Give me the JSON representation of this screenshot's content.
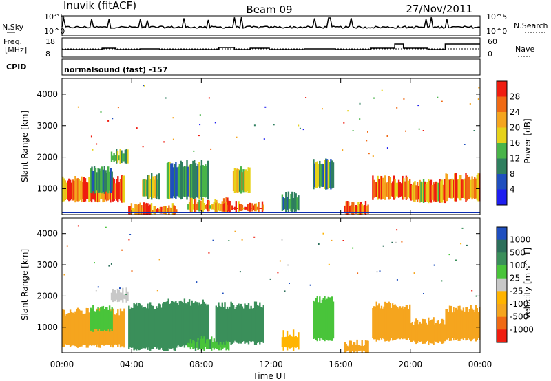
{
  "header": {
    "station": "Inuvik (fitACF)",
    "beam": "Beam 09",
    "date": "27/Nov/2011"
  },
  "strip": {
    "nsky_label": "N.Sky",
    "nsky_ticks": [
      "10^5",
      "10^0"
    ],
    "nsearch_label": "N.Search",
    "nsearch_ticks": [
      "10^5",
      "10^0"
    ],
    "freq_label_line1": "Freq.",
    "freq_label_line2": "[MHz]",
    "freq_ticks": [
      "18",
      "8"
    ],
    "nave_label": "Nave",
    "nave_ticks": [
      "60",
      "0"
    ],
    "cpid_label": "CPID",
    "cpid_value": "normalsound (fast) -157"
  },
  "x_ticks": [
    "00:00",
    "04:00",
    "08:00",
    "12:00",
    "16:00",
    "20:00",
    "00:00"
  ],
  "x_label": "Time UT",
  "colors": {
    "power": [
      "#1e1ef0",
      "#1f4fbf",
      "#2f7f5f",
      "#49b449",
      "#e6d21a",
      "#f5a51e",
      "#f06a14",
      "#ef1d10"
    ],
    "velocity": [
      "#ef1d10",
      "#f06a14",
      "#f5a51e",
      "#ffb400",
      "#c8c8c8",
      "#49c43a",
      "#3a8f5a",
      "#2c6f5a",
      "#1f4fbf"
    ]
  },
  "chart_data": [
    {
      "type": "heatmap",
      "panel": "power",
      "ylabel": "Slant Range [km]",
      "yticks": [
        "4000",
        "3000",
        "2000",
        "1000"
      ],
      "ylim": [
        180,
        4500
      ],
      "xlim": [
        "00:00",
        "24:00"
      ],
      "colorbar_label": "Power [dB]",
      "colorbar_ticks": [
        "28",
        "24",
        "20",
        "16",
        "12",
        "8",
        "4"
      ],
      "cbar_range": [
        0,
        32
      ],
      "echo_regions": [
        {
          "t": [
            0.0,
            3.6
          ],
          "range": [
            620,
            1300
          ],
          "value": 26
        },
        {
          "t": [
            1.6,
            2.9
          ],
          "range": [
            900,
            1600
          ],
          "value": 10
        },
        {
          "t": [
            2.8,
            3.8
          ],
          "range": [
            1850,
            2150
          ],
          "value": 14
        },
        {
          "t": [
            3.8,
            6.6
          ],
          "range": [
            200,
            450
          ],
          "value": 26
        },
        {
          "t": [
            4.6,
            5.6
          ],
          "range": [
            700,
            1400
          ],
          "value": 16
        },
        {
          "t": [
            6.0,
            8.4
          ],
          "range": [
            700,
            1800
          ],
          "value": 12
        },
        {
          "t": [
            7.2,
            9.6
          ],
          "range": [
            300,
            600
          ],
          "value": 22
        },
        {
          "t": [
            8.8,
            11.6
          ],
          "range": [
            300,
            500
          ],
          "value": 27
        },
        {
          "t": [
            9.8,
            10.8
          ],
          "range": [
            900,
            1600
          ],
          "value": 18
        },
        {
          "t": [
            12.6,
            13.6
          ],
          "range": [
            300,
            800
          ],
          "value": 10
        },
        {
          "t": [
            14.4,
            15.6
          ],
          "range": [
            1000,
            1900
          ],
          "value": 12
        },
        {
          "t": [
            16.2,
            17.6
          ],
          "range": [
            200,
            500
          ],
          "value": 27
        },
        {
          "t": [
            17.8,
            20.0
          ],
          "range": [
            700,
            1300
          ],
          "value": 26
        },
        {
          "t": [
            20.0,
            22.0
          ],
          "range": [
            600,
            1200
          ],
          "value": 24
        },
        {
          "t": [
            22.0,
            24.0
          ],
          "range": [
            650,
            1400
          ],
          "value": 26
        }
      ]
    },
    {
      "type": "heatmap",
      "panel": "velocity",
      "ylabel": "Slant Range [km]",
      "yticks": [
        "4000",
        "3000",
        "2000",
        "1000"
      ],
      "ylim": [
        180,
        4500
      ],
      "xlim": [
        "00:00",
        "24:00"
      ],
      "colorbar_label": "Velocity [m s^-1]",
      "colorbar_ticks": [
        "1000",
        "500",
        "100",
        "25",
        "-25",
        "-100",
        "-500",
        "-1000"
      ],
      "echo_regions": [
        {
          "t": [
            0.0,
            3.6
          ],
          "range": [
            400,
            1500
          ],
          "value": -300
        },
        {
          "t": [
            1.6,
            2.9
          ],
          "range": [
            900,
            1600
          ],
          "value": 60
        },
        {
          "t": [
            2.8,
            3.8
          ],
          "range": [
            1850,
            2150
          ],
          "value": 0
        },
        {
          "t": [
            3.8,
            6.6
          ],
          "range": [
            300,
            1700
          ],
          "value": 200
        },
        {
          "t": [
            6.0,
            8.4
          ],
          "range": [
            400,
            1800
          ],
          "value": 300
        },
        {
          "t": [
            7.2,
            9.6
          ],
          "range": [
            300,
            600
          ],
          "value": 80
        },
        {
          "t": [
            8.8,
            11.6
          ],
          "range": [
            500,
            1700
          ],
          "value": 250
        },
        {
          "t": [
            12.6,
            13.6
          ],
          "range": [
            300,
            800
          ],
          "value": -60
        },
        {
          "t": [
            14.4,
            15.6
          ],
          "range": [
            600,
            1900
          ],
          "value": 60
        },
        {
          "t": [
            16.2,
            17.6
          ],
          "range": [
            200,
            500
          ],
          "value": -120
        },
        {
          "t": [
            17.8,
            20.0
          ],
          "range": [
            600,
            1700
          ],
          "value": -250
        },
        {
          "t": [
            20.0,
            22.0
          ],
          "range": [
            500,
            1200
          ],
          "value": -150
        },
        {
          "t": [
            22.0,
            24.0
          ],
          "range": [
            600,
            1600
          ],
          "value": -400
        }
      ]
    }
  ]
}
